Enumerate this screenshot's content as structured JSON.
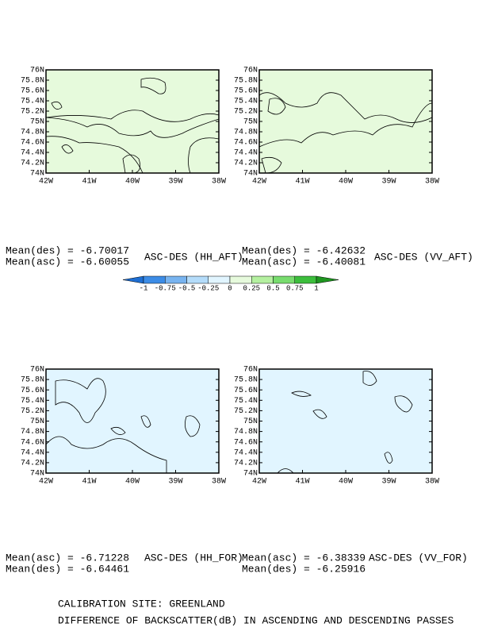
{
  "panels": [
    {
      "title": "ASC-DES (HH_AFT)",
      "stats": [
        "Mean(des) = -6.70017",
        "Mean(asc) = -6.60055"
      ]
    },
    {
      "title": "ASC-DES (VV_AFT)",
      "stats": [
        "Mean(des) = -6.42632",
        "Mean(asc) = -6.40081"
      ]
    },
    {
      "title": "ASC-DES (HH_FOR)",
      "stats": [
        "Mean(asc) = -6.71228",
        "Mean(des) = -6.64461"
      ]
    },
    {
      "title": "ASC-DES (VV_FOR)",
      "stats": [
        "Mean(asc) = -6.38339",
        "Mean(des) = -6.25916"
      ]
    }
  ],
  "axes": {
    "xticks": [
      "42W",
      "41W",
      "40W",
      "39W",
      "38W"
    ],
    "yticks": [
      "74N",
      "74.2N",
      "74.4N",
      "74.6N",
      "74.8N",
      "75N",
      "75.2N",
      "75.4N",
      "75.6N",
      "75.8N",
      "76N"
    ]
  },
  "colorbar": {
    "labels": [
      "-1",
      "-0.75",
      "-0.5",
      "-0.25",
      "0",
      "0.25",
      "0.5",
      "0.75",
      "1"
    ],
    "colors": [
      "#1e6ed2",
      "#3c8ce6",
      "#78b4f0",
      "#b4dcfa",
      "#e1f5ff",
      "#e6fadc",
      "#b4f0a0",
      "#78dc6e",
      "#3cbe3c",
      "#1e9620"
    ]
  },
  "footer": {
    "site": "CALIBRATION SITE: GREENLAND",
    "caption": "DIFFERENCE OF BACKSCATTER(dB) IN ASCENDING AND DESCENDING PASSES"
  }
}
